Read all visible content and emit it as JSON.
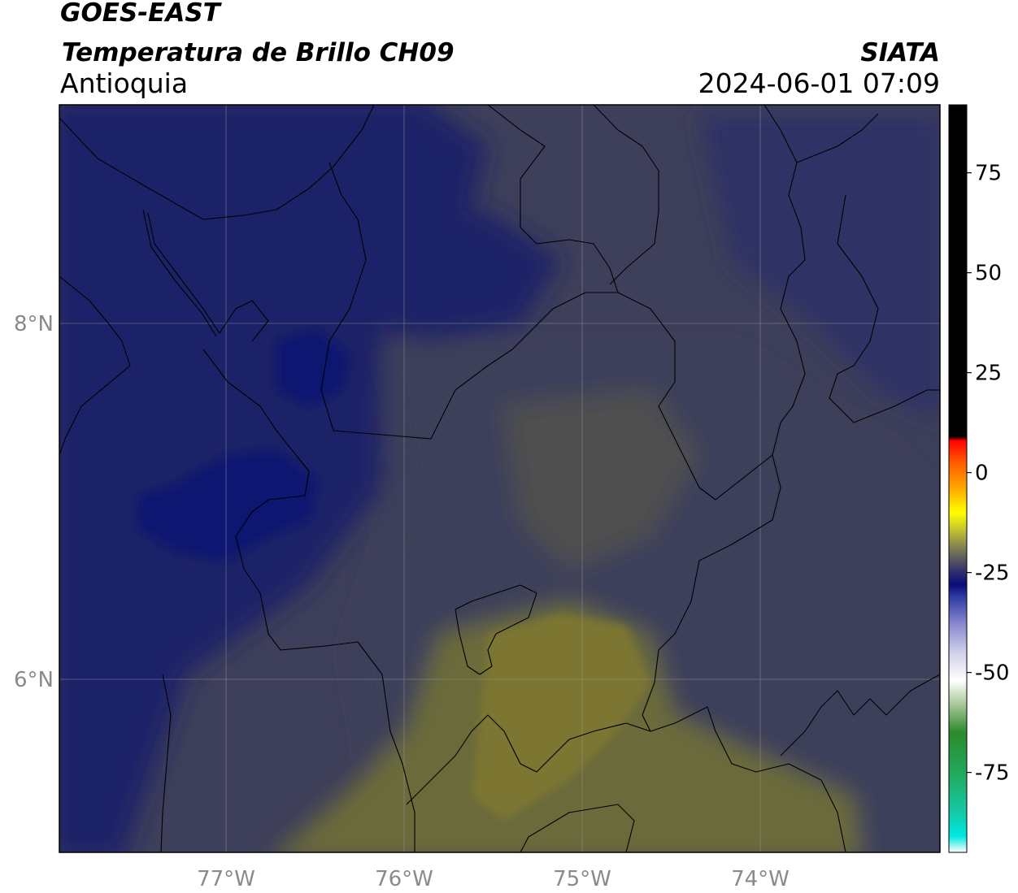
{
  "header": {
    "satellite": "GOES-EAST",
    "product": "Temperatura de Brillo CH09",
    "region": "Antioquia",
    "agency": "SIATA",
    "datetime": "2024-06-01 07:09"
  },
  "map": {
    "lon_range": [
      -77.95,
      -73.0
    ],
    "lat_range": [
      5.0,
      9.2
    ],
    "lon_ticks": [
      {
        "value": -77,
        "label": "77°W"
      },
      {
        "value": -76,
        "label": "76°W"
      },
      {
        "value": -75,
        "label": "75°W"
      },
      {
        "value": -74,
        "label": "74°W"
      }
    ],
    "lat_ticks": [
      {
        "value": 8,
        "label": "8°N"
      },
      {
        "value": 6,
        "label": "6°N"
      }
    ],
    "gridlines": true,
    "colors": {
      "cold_blue": "#0d1470",
      "deep_blue": "#1c2268",
      "mid_blue": "#2e3065",
      "slate": "#3e3f5a",
      "olive_gray": "#4f5050",
      "olive": "#6b6a3a",
      "olive_light": "#7b7633",
      "border": "#000000",
      "grid": "#9a9a9a"
    }
  },
  "colorbar": {
    "vmin": -95,
    "vmax": 92,
    "ticks": [
      {
        "value": 75,
        "label": "75"
      },
      {
        "value": 50,
        "label": "50"
      },
      {
        "value": 25,
        "label": "25"
      },
      {
        "value": 0,
        "label": "0"
      },
      {
        "value": -25,
        "label": "-25"
      },
      {
        "value": -50,
        "label": "-50"
      },
      {
        "value": -75,
        "label": "-75"
      }
    ],
    "stops": [
      {
        "value": -95,
        "color": "#ffffff"
      },
      {
        "value": -91,
        "color": "#00e8e0"
      },
      {
        "value": -85,
        "color": "#14c9a8"
      },
      {
        "value": -75,
        "color": "#22a85a"
      },
      {
        "value": -65,
        "color": "#2c8a2c"
      },
      {
        "value": -58,
        "color": "#a8c89a"
      },
      {
        "value": -52,
        "color": "#ffffff"
      },
      {
        "value": -45,
        "color": "#d0d0ea"
      },
      {
        "value": -38,
        "color": "#8a8ad0"
      },
      {
        "value": -31,
        "color": "#2e3ba0"
      },
      {
        "value": -28,
        "color": "#0a0a78"
      },
      {
        "value": -24,
        "color": "#3a3a6a"
      },
      {
        "value": -20,
        "color": "#6e6e5a"
      },
      {
        "value": -14,
        "color": "#c8c830"
      },
      {
        "value": -10,
        "color": "#ffff00"
      },
      {
        "value": -4,
        "color": "#ffaa00"
      },
      {
        "value": 3,
        "color": "#ff5500"
      },
      {
        "value": 8,
        "color": "#ff0000"
      },
      {
        "value": 9,
        "color": "#000000"
      },
      {
        "value": 92,
        "color": "#000000"
      }
    ]
  }
}
